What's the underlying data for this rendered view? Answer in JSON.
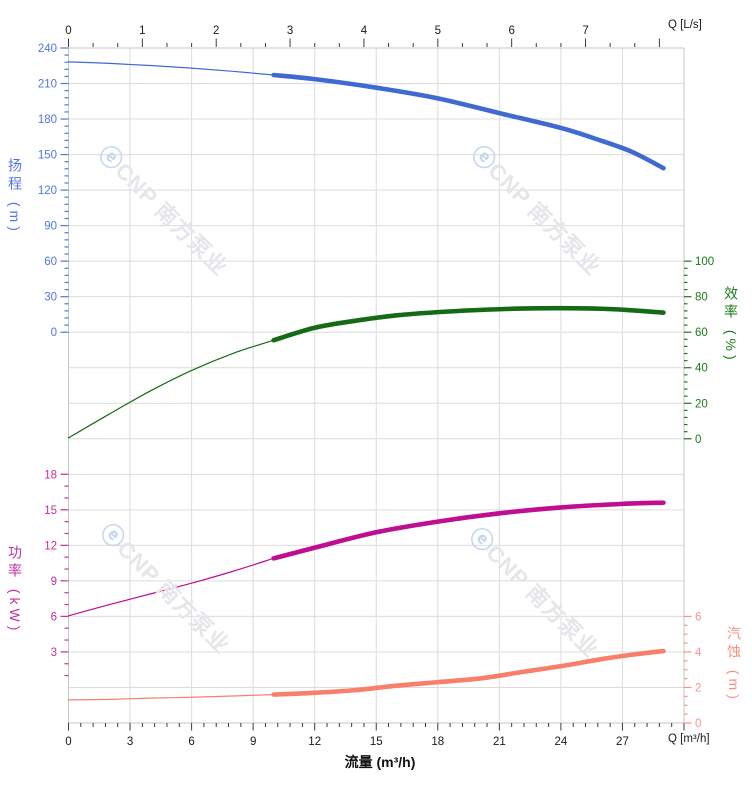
{
  "watermark": {
    "logo": "ⓔ",
    "text": "CNP 南方泵业"
  },
  "chart_data": {
    "type": "line",
    "title": "",
    "x_bottom": {
      "label": "流量 (m³/h)",
      "axis_unit": "Q [m³/h]",
      "range": [
        0,
        30
      ],
      "major_ticks": [
        0,
        3,
        6,
        9,
        12,
        15,
        18,
        21,
        24,
        27
      ],
      "edge_tick": 30,
      "minor_step": 0.6,
      "grid_step": 3
    },
    "x_top": {
      "axis_unit": "Q [L/s]",
      "range": [
        0,
        8.333
      ],
      "major_ticks": [
        0,
        1,
        2,
        3,
        4,
        5,
        6,
        7,
        8
      ],
      "labeled_ticks": [
        0,
        1,
        2,
        3,
        4,
        5,
        6,
        7
      ],
      "minor_step": 0.3333,
      "ls_to_m3h": 3.6
    },
    "y_axes": {
      "head": {
        "title": "扬程 (m)",
        "side": "left",
        "color": "#5175e2",
        "range": [
          0,
          240
        ],
        "major_ticks": [
          0,
          30,
          60,
          90,
          120,
          150,
          180,
          210,
          240
        ],
        "minor_step": 6
      },
      "efficiency": {
        "title": "效率 (%)",
        "side": "right",
        "color": "#1a7a1a",
        "range": [
          0,
          100
        ],
        "major_ticks": [
          0,
          20,
          40,
          60,
          80,
          100
        ],
        "minor_step": 4
      },
      "power": {
        "title": "功率 (kW)",
        "side": "left",
        "color": "#c52f9f",
        "range": [
          0,
          18
        ],
        "major_ticks": [
          3,
          6,
          9,
          12,
          15,
          18
        ],
        "minor_step": 1
      },
      "npsh": {
        "title": "汽蚀 (m)",
        "side": "right",
        "color": "#fb9186",
        "range": [
          0,
          6
        ],
        "major_ticks": [
          0,
          2,
          4,
          6
        ],
        "minor_step": 0.5
      }
    },
    "series": [
      {
        "name": "head-curve",
        "axis": "head",
        "color": "#4169d2",
        "points_thin": [
          [
            0,
            228.3
          ],
          [
            2,
            227.0
          ],
          [
            4,
            225.2
          ],
          [
            6,
            223.0
          ],
          [
            8,
            220.3
          ],
          [
            10,
            217.2
          ]
        ],
        "points_thick": [
          [
            10,
            217.2
          ],
          [
            12,
            213.7
          ],
          [
            15,
            206.5
          ],
          [
            18,
            197.5
          ],
          [
            21,
            185.0
          ],
          [
            24,
            172.5
          ],
          [
            26,
            161.5
          ],
          [
            27.5,
            152.0
          ],
          [
            29,
            138.5
          ]
        ]
      },
      {
        "name": "efficiency-curve",
        "axis": "efficiency",
        "color": "#156b15",
        "points_thin": [
          [
            0,
            0.5
          ],
          [
            2,
            14
          ],
          [
            4,
            27
          ],
          [
            6,
            38.5
          ],
          [
            8,
            48
          ],
          [
            10,
            55.5
          ]
        ],
        "points_thick": [
          [
            10,
            55.5
          ],
          [
            12,
            62.5
          ],
          [
            14,
            66.5
          ],
          [
            16,
            69.5
          ],
          [
            18,
            71.3
          ],
          [
            20,
            72.5
          ],
          [
            22,
            73.3
          ],
          [
            24,
            73.5
          ],
          [
            26,
            73.2
          ],
          [
            27.5,
            72.3
          ],
          [
            29,
            71.0
          ]
        ]
      },
      {
        "name": "power-curve",
        "axis": "power",
        "color": "#bf0e90",
        "points_thin": [
          [
            0,
            6.05
          ],
          [
            2,
            7.0
          ],
          [
            4,
            7.9
          ],
          [
            6,
            8.8
          ],
          [
            8,
            9.8
          ],
          [
            10,
            10.9
          ]
        ],
        "points_thick": [
          [
            10,
            10.9
          ],
          [
            12,
            11.8
          ],
          [
            15,
            13.1
          ],
          [
            18,
            14.0
          ],
          [
            21,
            14.7
          ],
          [
            24,
            15.2
          ],
          [
            27,
            15.5
          ],
          [
            29,
            15.6
          ]
        ]
      },
      {
        "name": "npsh-curve",
        "axis": "npsh",
        "color": "#f87f6c",
        "points_thin": [
          [
            0,
            1.3
          ],
          [
            2,
            1.33
          ],
          [
            4,
            1.4
          ],
          [
            6,
            1.45
          ],
          [
            8,
            1.52
          ],
          [
            10,
            1.6
          ]
        ],
        "points_thick": [
          [
            10,
            1.6
          ],
          [
            12,
            1.7
          ],
          [
            14,
            1.85
          ],
          [
            16,
            2.1
          ],
          [
            18,
            2.3
          ],
          [
            20,
            2.5
          ],
          [
            22,
            2.85
          ],
          [
            24,
            3.2
          ],
          [
            26,
            3.6
          ],
          [
            27.5,
            3.85
          ],
          [
            29,
            4.05
          ]
        ]
      }
    ]
  }
}
